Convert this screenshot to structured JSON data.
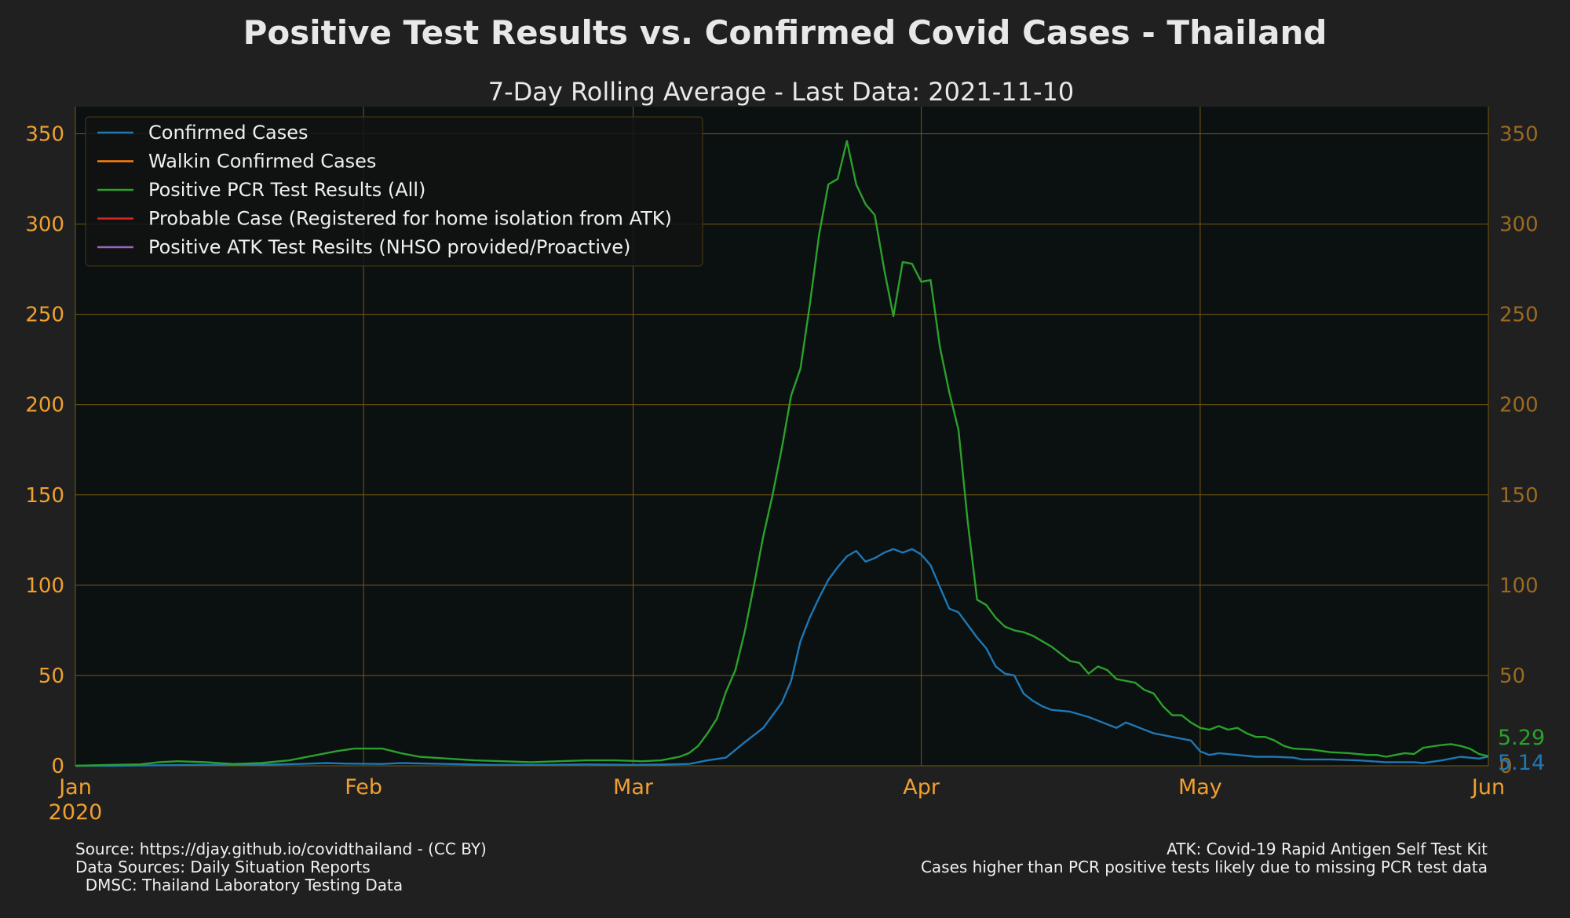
{
  "colors": {
    "background": "#202020",
    "plot_background": "#0b1010",
    "grid": "#7a5a10",
    "left_tick": "#f0a030",
    "right_tick": "#9a6a20"
  },
  "footer": {
    "left": [
      "Source: https://djay.github.io/covidthailand - (CC BY)",
      "Data Sources: Daily Situation Reports",
      "  DMSC: Thailand Laboratory Testing Data"
    ],
    "right": [
      "ATK: Covid-19 Rapid Antigen Self Test Kit",
      "Cases higher than PCR positive tests likely due to missing PCR test data"
    ]
  },
  "chart_data": {
    "type": "line",
    "title": "Positive Test Results vs. Confirmed Covid Cases - Thailand",
    "subtitle": "7-Day Rolling Average - Last Data: 2021-11-10",
    "xlabel": "",
    "ylabel": "",
    "x_range": [
      "2020-01-01",
      "2020-06-01"
    ],
    "x_ticks": [
      {
        "date": "2020-01-01",
        "label": "Jan",
        "sublabel": "2020"
      },
      {
        "date": "2020-02-01",
        "label": "Feb",
        "sublabel": ""
      },
      {
        "date": "2020-03-01",
        "label": "Mar",
        "sublabel": ""
      },
      {
        "date": "2020-04-01",
        "label": "Apr",
        "sublabel": ""
      },
      {
        "date": "2020-05-01",
        "label": "May",
        "sublabel": ""
      },
      {
        "date": "2020-06-01",
        "label": "Jun",
        "sublabel": ""
      }
    ],
    "ylim": [
      0,
      365
    ],
    "y_ticks": [
      0,
      50,
      100,
      150,
      200,
      250,
      300,
      350
    ],
    "grid": true,
    "right_axis": true,
    "legend_position": "top-left",
    "end_labels": [
      {
        "text": "5.29",
        "value": 5.29,
        "color": "#2ca02c"
      },
      {
        "text": "5.14",
        "value": 5.14,
        "color": "#1f77b4"
      }
    ],
    "series": [
      {
        "name": "Confirmed Cases",
        "color": "#1f77b4",
        "points": [
          [
            "2020-01-01",
            0
          ],
          [
            "2020-01-05",
            0
          ],
          [
            "2020-01-10",
            0.3
          ],
          [
            "2020-01-15",
            0.5
          ],
          [
            "2020-01-20",
            0.5
          ],
          [
            "2020-01-25",
            1
          ],
          [
            "2020-01-28",
            1.5
          ],
          [
            "2020-01-30",
            1.2
          ],
          [
            "2020-02-03",
            1
          ],
          [
            "2020-02-05",
            1.5
          ],
          [
            "2020-02-10",
            1
          ],
          [
            "2020-02-15",
            0.5
          ],
          [
            "2020-02-20",
            0.5
          ],
          [
            "2020-02-25",
            0.8
          ],
          [
            "2020-03-01",
            0.5
          ],
          [
            "2020-03-05",
            0.8
          ],
          [
            "2020-03-07",
            1
          ],
          [
            "2020-03-09",
            3
          ],
          [
            "2020-03-11",
            4.5
          ],
          [
            "2020-03-13",
            13
          ],
          [
            "2020-03-15",
            21
          ],
          [
            "2020-03-17",
            35
          ],
          [
            "2020-03-18",
            47
          ],
          [
            "2020-03-19",
            69
          ],
          [
            "2020-03-20",
            82
          ],
          [
            "2020-03-21",
            93
          ],
          [
            "2020-03-22",
            103
          ],
          [
            "2020-03-23",
            110
          ],
          [
            "2020-03-24",
            116
          ],
          [
            "2020-03-25",
            119
          ],
          [
            "2020-03-26",
            113
          ],
          [
            "2020-03-27",
            115
          ],
          [
            "2020-03-28",
            118
          ],
          [
            "2020-03-29",
            120
          ],
          [
            "2020-03-30",
            118
          ],
          [
            "2020-03-31",
            120
          ],
          [
            "2020-04-01",
            117
          ],
          [
            "2020-04-02",
            111
          ],
          [
            "2020-04-03",
            99
          ],
          [
            "2020-04-04",
            87
          ],
          [
            "2020-04-05",
            85
          ],
          [
            "2020-04-06",
            78
          ],
          [
            "2020-04-07",
            71
          ],
          [
            "2020-04-08",
            65
          ],
          [
            "2020-04-09",
            55
          ],
          [
            "2020-04-10",
            51
          ],
          [
            "2020-04-11",
            50
          ],
          [
            "2020-04-12",
            40
          ],
          [
            "2020-04-13",
            36
          ],
          [
            "2020-04-14",
            33
          ],
          [
            "2020-04-15",
            31
          ],
          [
            "2020-04-17",
            30
          ],
          [
            "2020-04-19",
            27
          ],
          [
            "2020-04-21",
            23
          ],
          [
            "2020-04-22",
            21
          ],
          [
            "2020-04-23",
            24
          ],
          [
            "2020-04-25",
            20
          ],
          [
            "2020-04-26",
            18
          ],
          [
            "2020-04-28",
            16
          ],
          [
            "2020-04-30",
            14
          ],
          [
            "2020-05-01",
            8
          ],
          [
            "2020-05-02",
            6
          ],
          [
            "2020-05-03",
            7
          ],
          [
            "2020-05-05",
            6
          ],
          [
            "2020-05-07",
            5
          ],
          [
            "2020-05-09",
            5
          ],
          [
            "2020-05-11",
            4.5
          ],
          [
            "2020-05-12",
            3.5
          ],
          [
            "2020-05-15",
            3.5
          ],
          [
            "2020-05-18",
            3
          ],
          [
            "2020-05-21",
            2
          ],
          [
            "2020-05-24",
            2
          ],
          [
            "2020-05-25",
            1.5
          ],
          [
            "2020-05-27",
            3
          ],
          [
            "2020-05-29",
            5
          ],
          [
            "2020-05-31",
            4
          ],
          [
            "2020-06-01",
            5.14
          ]
        ]
      },
      {
        "name": "Walkin Confirmed Cases",
        "color": "#ff7f0e",
        "points": []
      },
      {
        "name": "Positive PCR Test Results (All)",
        "color": "#2ca02c",
        "points": [
          [
            "2020-01-01",
            0
          ],
          [
            "2020-01-05",
            0.5
          ],
          [
            "2020-01-08",
            0.8
          ],
          [
            "2020-01-10",
            2
          ],
          [
            "2020-01-12",
            2.5
          ],
          [
            "2020-01-15",
            2
          ],
          [
            "2020-01-18",
            1
          ],
          [
            "2020-01-21",
            1.5
          ],
          [
            "2020-01-24",
            3
          ],
          [
            "2020-01-27",
            6
          ],
          [
            "2020-01-29",
            8
          ],
          [
            "2020-01-31",
            9.5
          ],
          [
            "2020-02-03",
            9.5
          ],
          [
            "2020-02-05",
            7
          ],
          [
            "2020-02-07",
            5
          ],
          [
            "2020-02-10",
            4
          ],
          [
            "2020-02-13",
            3
          ],
          [
            "2020-02-16",
            2.5
          ],
          [
            "2020-02-19",
            2
          ],
          [
            "2020-02-22",
            2.5
          ],
          [
            "2020-02-25",
            3
          ],
          [
            "2020-02-28",
            3
          ],
          [
            "2020-03-02",
            2.5
          ],
          [
            "2020-03-04",
            3
          ],
          [
            "2020-03-06",
            5
          ],
          [
            "2020-03-07",
            7
          ],
          [
            "2020-03-08",
            11
          ],
          [
            "2020-03-09",
            18
          ],
          [
            "2020-03-10",
            26
          ],
          [
            "2020-03-11",
            41
          ],
          [
            "2020-03-12",
            53
          ],
          [
            "2020-03-13",
            74
          ],
          [
            "2020-03-14",
            100
          ],
          [
            "2020-03-15",
            127
          ],
          [
            "2020-03-16",
            150
          ],
          [
            "2020-03-17",
            176
          ],
          [
            "2020-03-18",
            205
          ],
          [
            "2020-03-19",
            220
          ],
          [
            "2020-03-20",
            255
          ],
          [
            "2020-03-21",
            294
          ],
          [
            "2020-03-22",
            322
          ],
          [
            "2020-03-23",
            325
          ],
          [
            "2020-03-24",
            346
          ],
          [
            "2020-03-25",
            322
          ],
          [
            "2020-03-26",
            311
          ],
          [
            "2020-03-27",
            305
          ],
          [
            "2020-03-28",
            275
          ],
          [
            "2020-03-29",
            249
          ],
          [
            "2020-03-30",
            279
          ],
          [
            "2020-03-31",
            278
          ],
          [
            "2020-04-01",
            268
          ],
          [
            "2020-04-02",
            269
          ],
          [
            "2020-04-03",
            232
          ],
          [
            "2020-04-04",
            207
          ],
          [
            "2020-04-05",
            186
          ],
          [
            "2020-04-06",
            135
          ],
          [
            "2020-04-07",
            92
          ],
          [
            "2020-04-08",
            89
          ],
          [
            "2020-04-09",
            82
          ],
          [
            "2020-04-10",
            77
          ],
          [
            "2020-04-11",
            75
          ],
          [
            "2020-04-12",
            74
          ],
          [
            "2020-04-13",
            72
          ],
          [
            "2020-04-14",
            69
          ],
          [
            "2020-04-15",
            66
          ],
          [
            "2020-04-16",
            62
          ],
          [
            "2020-04-17",
            58
          ],
          [
            "2020-04-18",
            57
          ],
          [
            "2020-04-19",
            51
          ],
          [
            "2020-04-20",
            55
          ],
          [
            "2020-04-21",
            53
          ],
          [
            "2020-04-22",
            48
          ],
          [
            "2020-04-24",
            46
          ],
          [
            "2020-04-25",
            42
          ],
          [
            "2020-04-26",
            40
          ],
          [
            "2020-04-27",
            33
          ],
          [
            "2020-04-28",
            28
          ],
          [
            "2020-04-29",
            28
          ],
          [
            "2020-04-30",
            24
          ],
          [
            "2020-05-01",
            21
          ],
          [
            "2020-05-02",
            20
          ],
          [
            "2020-05-03",
            22
          ],
          [
            "2020-05-04",
            20
          ],
          [
            "2020-05-05",
            21
          ],
          [
            "2020-05-06",
            18
          ],
          [
            "2020-05-07",
            16
          ],
          [
            "2020-05-08",
            16
          ],
          [
            "2020-05-09",
            14
          ],
          [
            "2020-05-10",
            11
          ],
          [
            "2020-05-11",
            9.5
          ],
          [
            "2020-05-13",
            9
          ],
          [
            "2020-05-15",
            7.5
          ],
          [
            "2020-05-17",
            7
          ],
          [
            "2020-05-19",
            6
          ],
          [
            "2020-05-20",
            6
          ],
          [
            "2020-05-21",
            5
          ],
          [
            "2020-05-22",
            6
          ],
          [
            "2020-05-23",
            7
          ],
          [
            "2020-05-24",
            6.5
          ],
          [
            "2020-05-25",
            10
          ],
          [
            "2020-05-27",
            11.5
          ],
          [
            "2020-05-28",
            12
          ],
          [
            "2020-05-29",
            11
          ],
          [
            "2020-05-30",
            9.5
          ],
          [
            "2020-05-31",
            6.5
          ],
          [
            "2020-06-01",
            5.29
          ]
        ]
      },
      {
        "name": "Probable Case (Registered for home isolation from ATK)",
        "color": "#d62728",
        "points": []
      },
      {
        "name": "Positive ATK Test Resilts (NHSO provided/Proactive)",
        "color": "#9467bd",
        "points": []
      }
    ]
  }
}
